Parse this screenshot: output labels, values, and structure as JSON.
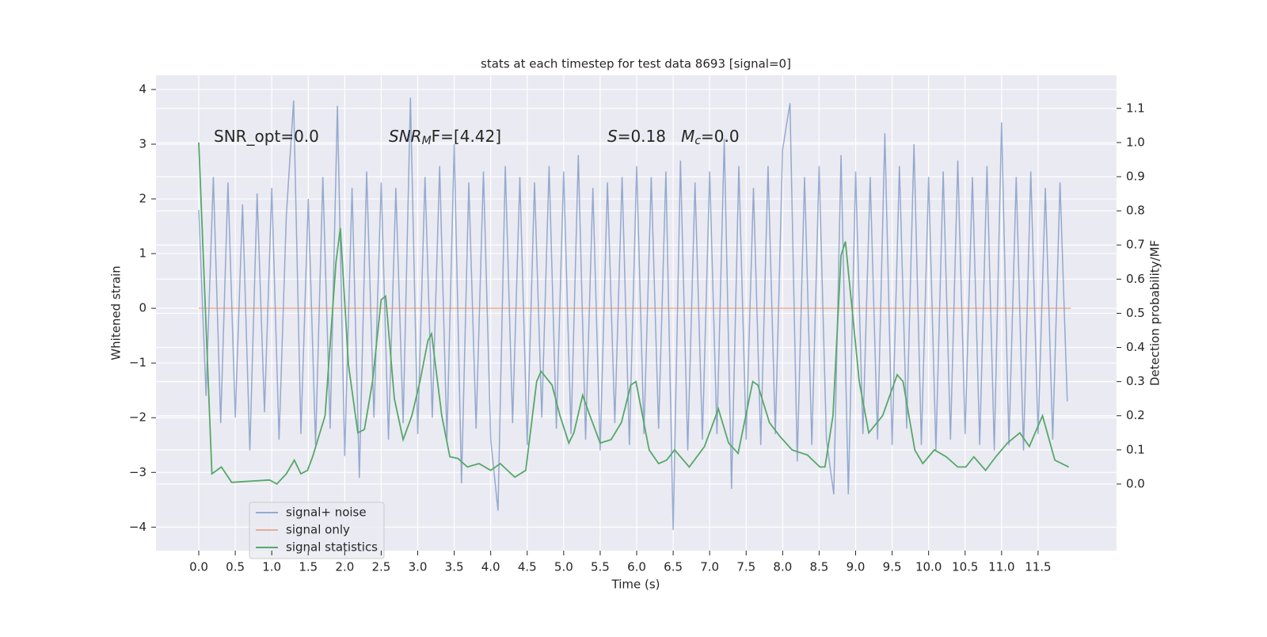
{
  "chart_data": {
    "type": "line",
    "title": "stats at each timestep for test data 8693 [signal=0]",
    "x_label": "Time (s)",
    "y_label": "Whitened strain",
    "y2_label": "Detection probability/MF",
    "annotations": [
      [
        {
          "text": "SNR_opt=0.0"
        }
      ],
      [
        {
          "text": "SNR",
          "italic": true
        },
        {
          "text": "M",
          "italic": true,
          "sub": true
        },
        {
          "text": "F=[4.42]"
        }
      ],
      [
        {
          "text": "S",
          "italic": true
        },
        {
          "text": "=0.18   "
        },
        {
          "text": "M",
          "italic": true
        },
        {
          "text": "c",
          "italic": true,
          "sub": true
        },
        {
          "text": "=0.0"
        }
      ]
    ],
    "xlim": [
      -0.586,
      12.575
    ],
    "ylim": [
      -4.43,
      4.26
    ],
    "y2lim": [
      -0.195,
      1.197
    ],
    "xticks": [
      {
        "value": 0,
        "label": "0.0"
      },
      0.5,
      {
        "value": 1,
        "label": "1.0"
      },
      1.5,
      {
        "value": 2,
        "label": "2.0"
      },
      2.5,
      {
        "value": 3,
        "label": "3.0"
      },
      3.5,
      {
        "value": 4,
        "label": "4.0"
      },
      4.5,
      {
        "value": 5,
        "label": "5.0"
      },
      5.5,
      {
        "value": 6,
        "label": "6.0"
      },
      6.5,
      {
        "value": 7,
        "label": "7.0"
      },
      7.5,
      {
        "value": 8,
        "label": "8.0"
      },
      8.5,
      {
        "value": 9,
        "label": "9.0"
      },
      9.5,
      {
        "value": 10,
        "label": "10.0"
      },
      10.5,
      {
        "value": 11,
        "label": "11.0"
      },
      11.5
    ],
    "yticks": [
      {
        "value": -4,
        "label": "−4"
      },
      {
        "value": -3,
        "label": "−3"
      },
      {
        "value": -2,
        "label": "−2"
      },
      {
        "value": -1,
        "label": "−1"
      },
      0,
      1,
      2,
      3,
      4
    ],
    "y2ticks": [
      {
        "value": 0,
        "label": "0.0"
      },
      0.1,
      0.2,
      0.3,
      0.4,
      0.5,
      0.6,
      0.7,
      0.8,
      0.9,
      {
        "value": 1,
        "label": "1.0"
      },
      1.1
    ],
    "grid": true,
    "legend": "lower left",
    "series": [
      {
        "name": "signal+ noise",
        "color": "#4c72b0",
        "opacity": 0.55,
        "x": [
          0,
          0.1,
          0.2,
          0.3,
          0.4,
          0.5,
          0.6,
          0.7,
          0.8,
          0.9,
          1,
          1.1,
          1.2,
          1.3,
          1.4,
          1.5,
          1.6,
          1.7,
          1.8,
          1.9,
          2,
          2.1,
          2.2,
          2.3,
          2.4,
          2.5,
          2.6,
          2.7,
          2.8,
          2.9,
          3,
          3.1,
          3.2,
          3.3,
          3.4,
          3.5,
          3.6,
          3.7,
          3.8,
          3.9,
          4,
          4.1,
          4.2,
          4.3,
          4.4,
          4.5,
          4.6,
          4.7,
          4.8,
          4.9,
          5,
          5.1,
          5.2,
          5.3,
          5.4,
          5.5,
          5.6,
          5.7,
          5.8,
          5.9,
          6,
          6.1,
          6.2,
          6.3,
          6.4,
          6.5,
          6.6,
          6.7,
          6.8,
          6.9,
          7,
          7.1,
          7.2,
          7.3,
          7.4,
          7.5,
          7.6,
          7.7,
          7.8,
          7.9,
          8,
          8.1,
          8.2,
          8.3,
          8.4,
          8.5,
          8.6,
          8.7,
          8.8,
          8.9,
          9,
          9.1,
          9.2,
          9.3,
          9.4,
          9.5,
          9.6,
          9.7,
          9.8,
          9.9,
          10,
          10.1,
          10.2,
          10.3,
          10.4,
          10.5,
          10.6,
          10.7,
          10.8,
          10.9,
          11,
          11.1,
          11.2,
          11.3,
          11.4,
          11.5,
          11.6,
          11.7,
          11.8,
          11.9
        ],
        "values": [
          1.8,
          -1.6,
          2.4,
          -2.1,
          2.3,
          -2.0,
          1.9,
          -2.6,
          2.1,
          -1.9,
          2.2,
          -2.4,
          1.7,
          3.8,
          -2.3,
          2.0,
          -2.5,
          2.4,
          -2.2,
          3.7,
          -2.7,
          2.2,
          -3.1,
          2.5,
          -2.0,
          2.3,
          -2.4,
          2.2,
          -2.1,
          3.85,
          -2.3,
          2.4,
          -2.0,
          2.6,
          -2.4,
          3.0,
          -3.2,
          2.3,
          -2.2,
          2.5,
          -2.4,
          -3.7,
          2.6,
          -2.1,
          2.4,
          -2.5,
          2.3,
          -2.0,
          2.6,
          -2.2,
          2.5,
          -2.3,
          2.8,
          -2.4,
          2.2,
          -2.6,
          2.3,
          -2.1,
          2.4,
          -2.5,
          2.6,
          -2.3,
          2.4,
          -2.2,
          2.5,
          -4.05,
          2.7,
          -2.6,
          2.3,
          -2.4,
          2.5,
          -2.3,
          3.1,
          -3.3,
          2.6,
          -2.4,
          2.2,
          -2.5,
          2.6,
          -2.3,
          2.9,
          3.75,
          -2.8,
          2.4,
          -2.5,
          2.6,
          -2.4,
          -3.4,
          2.8,
          -3.4,
          2.5,
          -2.3,
          2.4,
          -2.4,
          3.2,
          -2.5,
          2.6,
          -2.2,
          3.0,
          -2.5,
          2.4,
          -2.6,
          2.5,
          -2.4,
          2.7,
          -2.3,
          2.4,
          -2.5,
          2.6,
          -2.6,
          3.4,
          -2.5,
          2.4,
          -2.6,
          2.5,
          -2.3,
          2.2,
          -2.4,
          2.3,
          -1.7
        ]
      },
      {
        "name": "signal only",
        "color": "#dd8452",
        "opacity": 0.6,
        "x": [
          0,
          11.95
        ],
        "values": [
          0,
          0
        ]
      },
      {
        "name": "signal statistics",
        "color": "#55a868",
        "opacity": 1,
        "axis": "y2",
        "x": [
          0,
          0.18,
          0.31,
          0.45,
          0.97,
          1.07,
          1.2,
          1.31,
          1.4,
          1.49,
          1.56,
          1.73,
          1.88,
          1.94,
          2.05,
          2.18,
          2.27,
          2.38,
          2.5,
          2.56,
          2.68,
          2.8,
          2.92,
          3.03,
          3.14,
          3.19,
          3.33,
          3.44,
          3.55,
          3.68,
          3.84,
          4.0,
          4.13,
          4.33,
          4.48,
          4.63,
          4.69,
          4.84,
          4.95,
          5.07,
          5.14,
          5.26,
          5.36,
          5.5,
          5.65,
          5.79,
          5.92,
          5.99,
          6.17,
          6.3,
          6.41,
          6.52,
          6.72,
          6.93,
          7.12,
          7.26,
          7.39,
          7.59,
          7.66,
          7.82,
          7.96,
          8.13,
          8.34,
          8.51,
          8.58,
          8.69,
          8.8,
          8.86,
          9.05,
          9.18,
          9.37,
          9.57,
          9.65,
          9.81,
          9.92,
          10.08,
          10.24,
          10.4,
          10.51,
          10.62,
          10.78,
          10.92,
          11.08,
          11.25,
          11.38,
          11.56,
          11.73,
          11.92
        ],
        "values": [
          1.0,
          0.03,
          0.05,
          0.005,
          0.012,
          0.0,
          0.03,
          0.07,
          0.03,
          0.04,
          0.08,
          0.2,
          0.65,
          0.75,
          0.35,
          0.15,
          0.16,
          0.3,
          0.54,
          0.55,
          0.25,
          0.13,
          0.2,
          0.3,
          0.42,
          0.44,
          0.2,
          0.08,
          0.075,
          0.05,
          0.06,
          0.04,
          0.06,
          0.02,
          0.04,
          0.3,
          0.33,
          0.29,
          0.2,
          0.12,
          0.15,
          0.26,
          0.2,
          0.12,
          0.13,
          0.18,
          0.29,
          0.3,
          0.1,
          0.06,
          0.07,
          0.1,
          0.05,
          0.11,
          0.22,
          0.12,
          0.09,
          0.3,
          0.29,
          0.18,
          0.14,
          0.1,
          0.085,
          0.05,
          0.05,
          0.2,
          0.67,
          0.71,
          0.3,
          0.15,
          0.2,
          0.32,
          0.3,
          0.1,
          0.06,
          0.1,
          0.08,
          0.05,
          0.05,
          0.08,
          0.04,
          0.08,
          0.12,
          0.15,
          0.11,
          0.2,
          0.07,
          0.05
        ]
      }
    ]
  }
}
